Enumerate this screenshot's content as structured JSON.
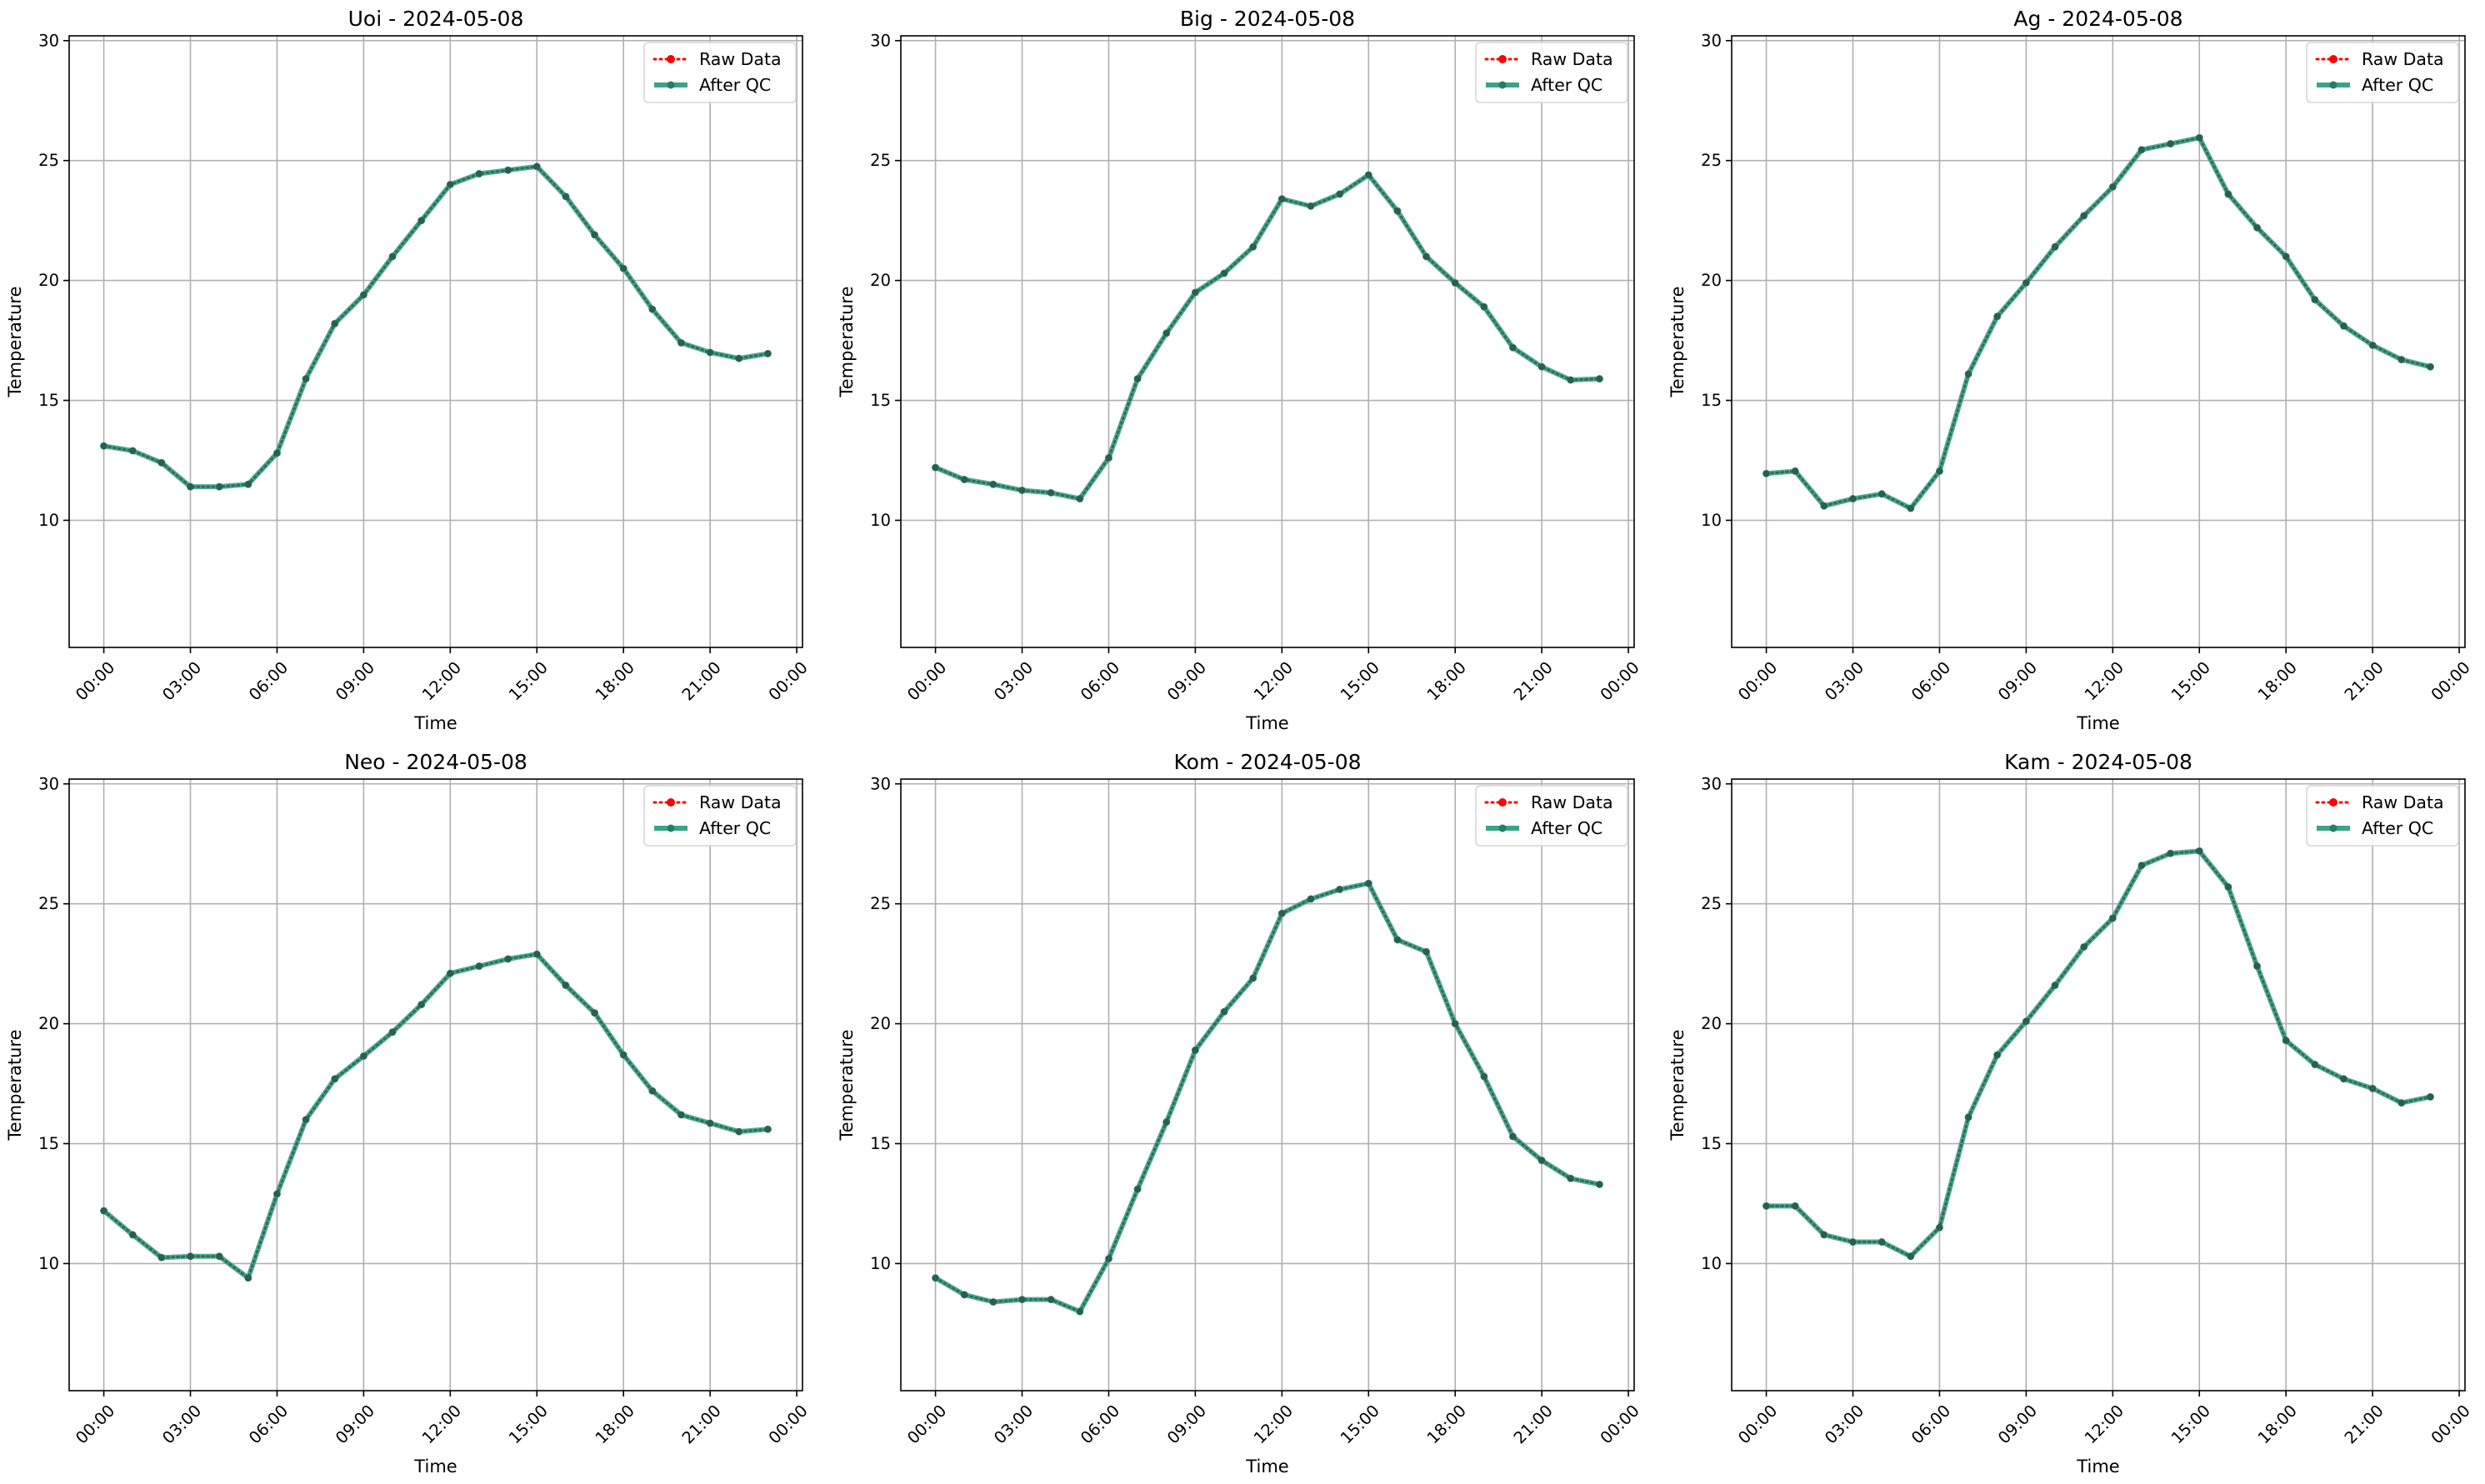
{
  "chart_data": [
    {
      "type": "line",
      "title": "Uoi - 2024-05-08",
      "xlabel": "Time",
      "ylabel": "Temperature",
      "xlim_hours": [
        -1.2,
        24.2
      ],
      "ylim": [
        4.7,
        30.2
      ],
      "x_ticks": [
        "00:00",
        "03:00",
        "06:00",
        "09:00",
        "12:00",
        "15:00",
        "18:00",
        "21:00",
        "00:00"
      ],
      "y_ticks": [
        10,
        15,
        20,
        25,
        30
      ],
      "grid": true,
      "legend_placement": "top-right",
      "legend": [
        "Raw Data",
        "After QC"
      ],
      "x": [
        "00:00",
        "01:00",
        "02:00",
        "03:00",
        "04:00",
        "05:00",
        "06:00",
        "07:00",
        "08:00",
        "09:00",
        "10:00",
        "11:00",
        "12:00",
        "13:00",
        "14:00",
        "15:00",
        "16:00",
        "17:00",
        "18:00",
        "19:00",
        "20:00",
        "21:00",
        "22:00",
        "23:00"
      ],
      "series": [
        {
          "name": "Raw Data",
          "color": "#ff0000",
          "style": "dotted",
          "values": [
            13.1,
            12.9,
            12.4,
            11.4,
            11.4,
            11.5,
            12.8,
            15.9,
            18.2,
            19.4,
            21.0,
            22.5,
            24.0,
            24.45,
            24.6,
            24.75,
            23.5,
            21.9,
            20.5,
            18.8,
            17.4,
            17.0,
            16.75,
            16.95
          ]
        },
        {
          "name": "After QC",
          "color": "#3aa38a",
          "style": "solid",
          "values": [
            13.1,
            12.9,
            12.4,
            11.4,
            11.4,
            11.5,
            12.8,
            15.9,
            18.2,
            19.4,
            21.0,
            22.5,
            24.0,
            24.45,
            24.6,
            24.75,
            23.5,
            21.9,
            20.5,
            18.8,
            17.4,
            17.0,
            16.75,
            16.95
          ]
        }
      ]
    },
    {
      "type": "line",
      "title": "Big - 2024-05-08",
      "xlabel": "Time",
      "ylabel": "Temperature",
      "xlim_hours": [
        -1.2,
        24.2
      ],
      "ylim": [
        4.7,
        30.2
      ],
      "x_ticks": [
        "00:00",
        "03:00",
        "06:00",
        "09:00",
        "12:00",
        "15:00",
        "18:00",
        "21:00",
        "00:00"
      ],
      "y_ticks": [
        10,
        15,
        20,
        25,
        30
      ],
      "grid": true,
      "legend_placement": "top-right",
      "legend": [
        "Raw Data",
        "After QC"
      ],
      "x": [
        "00:00",
        "01:00",
        "02:00",
        "03:00",
        "04:00",
        "05:00",
        "06:00",
        "07:00",
        "08:00",
        "09:00",
        "10:00",
        "11:00",
        "12:00",
        "13:00",
        "14:00",
        "15:00",
        "16:00",
        "17:00",
        "18:00",
        "19:00",
        "20:00",
        "21:00",
        "22:00",
        "23:00"
      ],
      "series": [
        {
          "name": "Raw Data",
          "color": "#ff0000",
          "style": "dotted",
          "values": [
            12.2,
            11.7,
            11.5,
            11.25,
            11.15,
            10.9,
            12.6,
            15.9,
            17.8,
            19.5,
            20.3,
            21.4,
            23.4,
            23.1,
            23.6,
            24.4,
            22.9,
            21.0,
            19.9,
            18.9,
            17.2,
            16.4,
            15.85,
            15.9
          ]
        },
        {
          "name": "After QC",
          "color": "#3aa38a",
          "style": "solid",
          "values": [
            12.2,
            11.7,
            11.5,
            11.25,
            11.15,
            10.9,
            12.6,
            15.9,
            17.8,
            19.5,
            20.3,
            21.4,
            23.4,
            23.1,
            23.6,
            24.4,
            22.9,
            21.0,
            19.9,
            18.9,
            17.2,
            16.4,
            15.85,
            15.9
          ]
        }
      ]
    },
    {
      "type": "line",
      "title": "Ag - 2024-05-08",
      "xlabel": "Time",
      "ylabel": "Temperature",
      "xlim_hours": [
        -1.2,
        24.2
      ],
      "ylim": [
        4.7,
        30.2
      ],
      "x_ticks": [
        "00:00",
        "03:00",
        "06:00",
        "09:00",
        "12:00",
        "15:00",
        "18:00",
        "21:00",
        "00:00"
      ],
      "y_ticks": [
        10,
        15,
        20,
        25,
        30
      ],
      "grid": true,
      "legend_placement": "top-right",
      "legend": [
        "Raw Data",
        "After QC"
      ],
      "x": [
        "00:00",
        "01:00",
        "02:00",
        "03:00",
        "04:00",
        "05:00",
        "06:00",
        "07:00",
        "08:00",
        "09:00",
        "10:00",
        "11:00",
        "12:00",
        "13:00",
        "14:00",
        "15:00",
        "16:00",
        "17:00",
        "18:00",
        "19:00",
        "20:00",
        "21:00",
        "22:00",
        "23:00"
      ],
      "series": [
        {
          "name": "Raw Data",
          "color": "#ff0000",
          "style": "dotted",
          "values": [
            11.95,
            12.05,
            10.6,
            10.9,
            11.1,
            10.5,
            12.05,
            16.1,
            18.5,
            19.9,
            21.4,
            22.7,
            23.9,
            25.45,
            25.7,
            25.95,
            23.6,
            22.2,
            21.0,
            19.2,
            18.1,
            17.3,
            16.7,
            16.4
          ]
        },
        {
          "name": "After QC",
          "color": "#3aa38a",
          "style": "solid",
          "values": [
            11.95,
            12.05,
            10.6,
            10.9,
            11.1,
            10.5,
            12.05,
            16.1,
            18.5,
            19.9,
            21.4,
            22.7,
            23.9,
            25.45,
            25.7,
            25.95,
            23.6,
            22.2,
            21.0,
            19.2,
            18.1,
            17.3,
            16.7,
            16.4
          ]
        }
      ]
    },
    {
      "type": "line",
      "title": "Neo - 2024-05-08",
      "xlabel": "Time",
      "ylabel": "Temperature",
      "xlim_hours": [
        -1.2,
        24.2
      ],
      "ylim": [
        4.7,
        30.2
      ],
      "x_ticks": [
        "00:00",
        "03:00",
        "06:00",
        "09:00",
        "12:00",
        "15:00",
        "18:00",
        "21:00",
        "00:00"
      ],
      "y_ticks": [
        10,
        15,
        20,
        25,
        30
      ],
      "grid": true,
      "legend_placement": "top-right",
      "legend": [
        "Raw Data",
        "After QC"
      ],
      "x": [
        "00:00",
        "01:00",
        "02:00",
        "03:00",
        "04:00",
        "05:00",
        "06:00",
        "07:00",
        "08:00",
        "09:00",
        "10:00",
        "11:00",
        "12:00",
        "13:00",
        "14:00",
        "15:00",
        "16:00",
        "17:00",
        "18:00",
        "19:00",
        "20:00",
        "21:00",
        "22:00",
        "23:00"
      ],
      "series": [
        {
          "name": "Raw Data",
          "color": "#ff0000",
          "style": "dotted",
          "values": [
            12.2,
            11.2,
            10.25,
            10.3,
            10.3,
            9.4,
            12.9,
            16.0,
            17.7,
            18.65,
            19.65,
            20.8,
            22.1,
            22.4,
            22.7,
            22.9,
            21.6,
            20.45,
            18.7,
            17.2,
            16.2,
            15.85,
            15.5,
            15.6
          ]
        },
        {
          "name": "After QC",
          "color": "#3aa38a",
          "style": "solid",
          "values": [
            12.2,
            11.2,
            10.25,
            10.3,
            10.3,
            9.4,
            12.9,
            16.0,
            17.7,
            18.65,
            19.65,
            20.8,
            22.1,
            22.4,
            22.7,
            22.9,
            21.6,
            20.45,
            18.7,
            17.2,
            16.2,
            15.85,
            15.5,
            15.6
          ]
        }
      ]
    },
    {
      "type": "line",
      "title": "Kom - 2024-05-08",
      "xlabel": "Time",
      "ylabel": "Temperature",
      "xlim_hours": [
        -1.2,
        24.2
      ],
      "ylim": [
        4.7,
        30.2
      ],
      "x_ticks": [
        "00:00",
        "03:00",
        "06:00",
        "09:00",
        "12:00",
        "15:00",
        "18:00",
        "21:00",
        "00:00"
      ],
      "y_ticks": [
        10,
        15,
        20,
        25,
        30
      ],
      "grid": true,
      "legend_placement": "top-right",
      "legend": [
        "Raw Data",
        "After QC"
      ],
      "x": [
        "00:00",
        "01:00",
        "02:00",
        "03:00",
        "04:00",
        "05:00",
        "06:00",
        "07:00",
        "08:00",
        "09:00",
        "10:00",
        "11:00",
        "12:00",
        "13:00",
        "14:00",
        "15:00",
        "16:00",
        "17:00",
        "18:00",
        "19:00",
        "20:00",
        "21:00",
        "22:00",
        "23:00"
      ],
      "series": [
        {
          "name": "Raw Data",
          "color": "#ff0000",
          "style": "dotted",
          "values": [
            9.4,
            8.7,
            8.4,
            8.5,
            8.5,
            8.0,
            10.2,
            13.1,
            15.9,
            18.9,
            20.5,
            21.9,
            24.6,
            25.2,
            25.6,
            25.85,
            23.5,
            23.0,
            20.0,
            17.8,
            15.3,
            14.3,
            13.55,
            13.3
          ]
        },
        {
          "name": "After QC",
          "color": "#3aa38a",
          "style": "solid",
          "values": [
            9.4,
            8.7,
            8.4,
            8.5,
            8.5,
            8.0,
            10.2,
            13.1,
            15.9,
            18.9,
            20.5,
            21.9,
            24.6,
            25.2,
            25.6,
            25.85,
            23.5,
            23.0,
            20.0,
            17.8,
            15.3,
            14.3,
            13.55,
            13.3
          ]
        }
      ]
    },
    {
      "type": "line",
      "title": "Kam - 2024-05-08",
      "xlabel": "Time",
      "ylabel": "Temperature",
      "xlim_hours": [
        -1.2,
        24.2
      ],
      "ylim": [
        4.7,
        30.2
      ],
      "x_ticks": [
        "00:00",
        "03:00",
        "06:00",
        "09:00",
        "12:00",
        "15:00",
        "18:00",
        "21:00",
        "00:00"
      ],
      "y_ticks": [
        10,
        15,
        20,
        25,
        30
      ],
      "grid": true,
      "legend_placement": "top-right",
      "legend": [
        "Raw Data",
        "After QC"
      ],
      "x": [
        "00:00",
        "01:00",
        "02:00",
        "03:00",
        "04:00",
        "05:00",
        "06:00",
        "07:00",
        "08:00",
        "09:00",
        "10:00",
        "11:00",
        "12:00",
        "13:00",
        "14:00",
        "15:00",
        "16:00",
        "17:00",
        "18:00",
        "19:00",
        "20:00",
        "21:00",
        "22:00",
        "23:00"
      ],
      "series": [
        {
          "name": "Raw Data",
          "color": "#ff0000",
          "style": "dotted",
          "values": [
            12.4,
            12.4,
            11.2,
            10.9,
            10.9,
            10.3,
            11.5,
            16.1,
            18.7,
            20.1,
            21.6,
            23.2,
            24.4,
            26.6,
            27.1,
            27.2,
            25.7,
            22.4,
            19.3,
            18.3,
            17.7,
            17.3,
            16.7,
            16.95
          ]
        },
        {
          "name": "After QC",
          "color": "#3aa38a",
          "style": "solid",
          "values": [
            12.4,
            12.4,
            11.2,
            10.9,
            10.9,
            10.3,
            11.5,
            16.1,
            18.7,
            20.1,
            21.6,
            23.2,
            24.4,
            26.6,
            27.1,
            27.2,
            25.7,
            22.4,
            19.3,
            18.3,
            17.7,
            17.3,
            16.7,
            16.95
          ]
        }
      ]
    }
  ]
}
